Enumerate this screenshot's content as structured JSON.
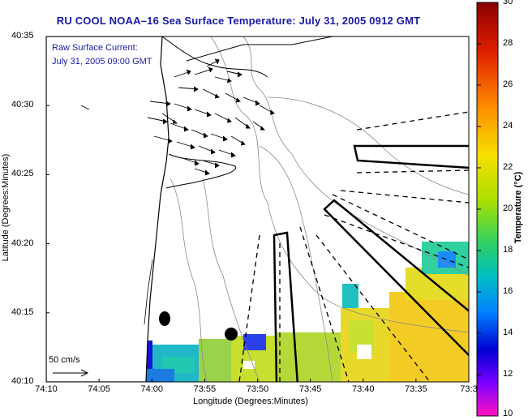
{
  "header": {
    "title": "RU COOL  NOAA–16  Sea Surface Temperature:  July 31, 2005 0912 GMT"
  },
  "overlay": {
    "current_label": "Raw Surface Current:",
    "current_time": "July 31, 2005 09:00 GMT",
    "scale_label": "50 cm/s"
  },
  "axes": {
    "xlabel": "Longitude (Degrees:Minutes)",
    "ylabel": "Latitude (Degrees:Minutes)",
    "xticks": [
      "74:10",
      "74:05",
      "74:00",
      "73:55",
      "73:50",
      "73:45",
      "73:40",
      "73:35",
      "73:3"
    ],
    "yticks": [
      "40:35",
      "40:30",
      "40:25",
      "40:20",
      "40:15",
      "40:10"
    ]
  },
  "colorbar": {
    "label": "Temperature (°C)",
    "ticks": [
      "30",
      "28",
      "26",
      "24",
      "22",
      "20",
      "18",
      "16",
      "14",
      "12",
      "10"
    ],
    "min": 10,
    "max": 30
  },
  "colors": {
    "title": "#1a1aa8",
    "land": "#ffffff",
    "outline": "#000000"
  }
}
